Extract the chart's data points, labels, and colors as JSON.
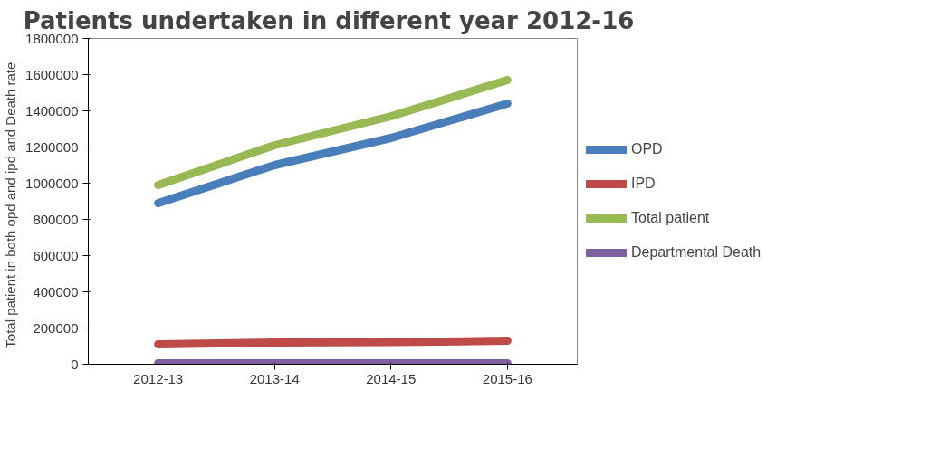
{
  "chart_data": {
    "type": "line",
    "title": "Patients undertaken  in different year 2012-16",
    "ylabel": "Total patient  in both opd and ipd  and Death rate",
    "categories": [
      "2012-13",
      "2013-14",
      "2014-15",
      "2015-16"
    ],
    "series": [
      {
        "name": "OPD",
        "color": "#4a7ebb",
        "values": [
          890000,
          1100000,
          1250000,
          1440000
        ]
      },
      {
        "name": "IPD",
        "color": "#be4b48",
        "values": [
          110000,
          120000,
          122000,
          130000
        ]
      },
      {
        "name": "Total patient",
        "color": "#98b954",
        "values": [
          990000,
          1210000,
          1370000,
          1570000
        ]
      },
      {
        "name": "Departmental Death",
        "color": "#7d60a0",
        "values": [
          5000,
          5000,
          5000,
          5000
        ]
      }
    ],
    "ylim": [
      0,
      1800000
    ],
    "yticks": [
      0,
      200000,
      400000,
      600000,
      800000,
      1000000,
      1200000,
      1400000,
      1600000,
      1800000
    ],
    "grid": false,
    "legend": "right",
    "marker": "none",
    "line_style": "solid"
  }
}
